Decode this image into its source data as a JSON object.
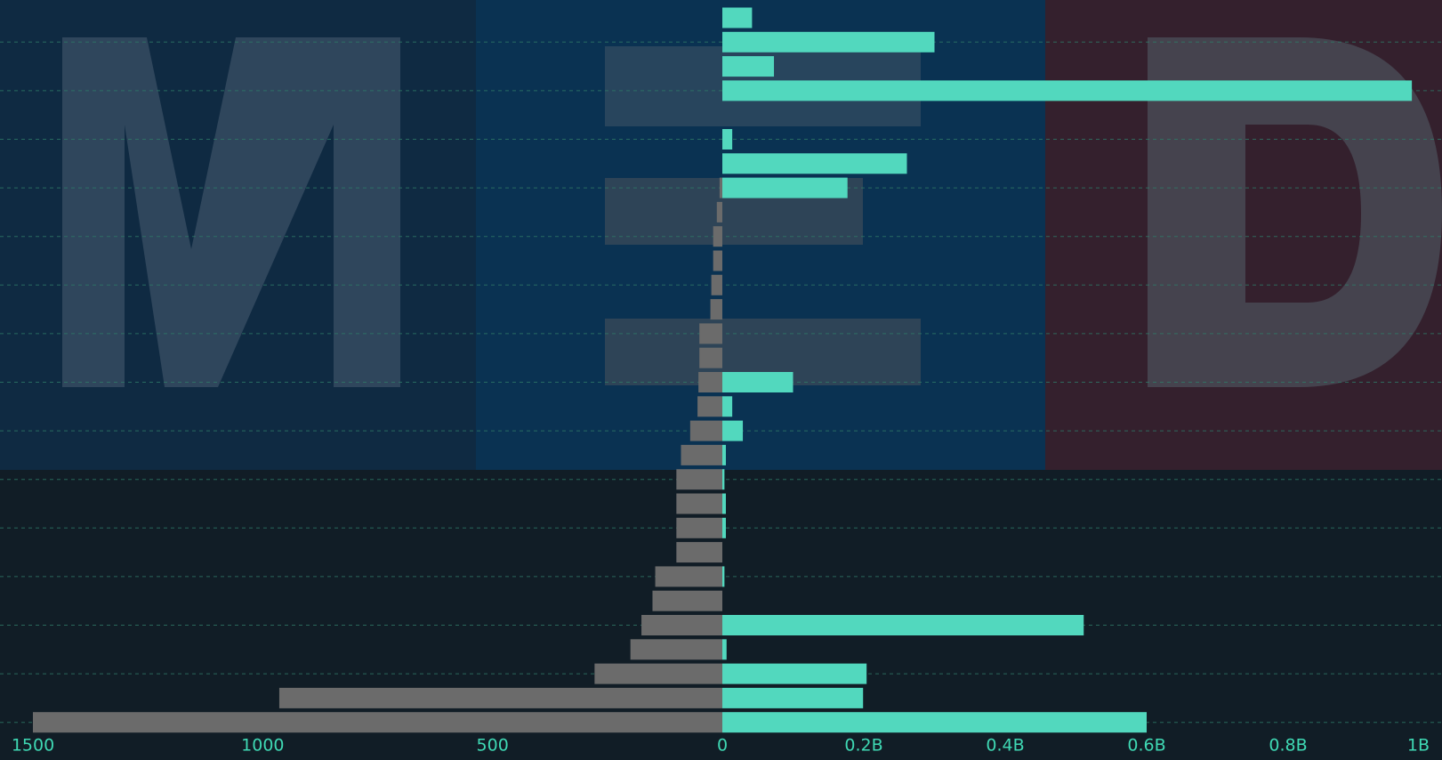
{
  "chart_data": {
    "type": "butterfly",
    "left": {
      "color": "#6b6b6b",
      "xlim": [
        0,
        1500
      ],
      "xticks": [
        0,
        500,
        1000,
        1500
      ],
      "values": [
        0,
        0,
        0,
        0,
        0,
        0,
        0,
        6,
        12,
        20,
        20,
        24,
        26,
        50,
        50,
        52,
        54,
        70,
        90,
        100,
        100,
        100,
        100,
        146,
        152,
        176,
        200,
        278,
        964,
        1500
      ]
    },
    "right": {
      "color": "#52d8be",
      "xlim": [
        0,
        1000000000
      ],
      "xticks": [
        {
          "value": 200000000,
          "label": "0.2B"
        },
        {
          "value": 400000000,
          "label": "0.4B"
        },
        {
          "value": 600000000,
          "label": "0.6B"
        },
        {
          "value": 800000000,
          "label": "0.8B"
        },
        {
          "value": 1000000000,
          "label": "1B"
        }
      ],
      "values": [
        42000000,
        300000000,
        73000000,
        975000000,
        0,
        14000000,
        261000000,
        177000000,
        0,
        0,
        0,
        0,
        0,
        0,
        0,
        100000000,
        14000000,
        29000000,
        5000000,
        3000000,
        5000000,
        5000000,
        0,
        3000000,
        0,
        511000000,
        6000000,
        204000000,
        199000000,
        600000000
      ]
    }
  }
}
